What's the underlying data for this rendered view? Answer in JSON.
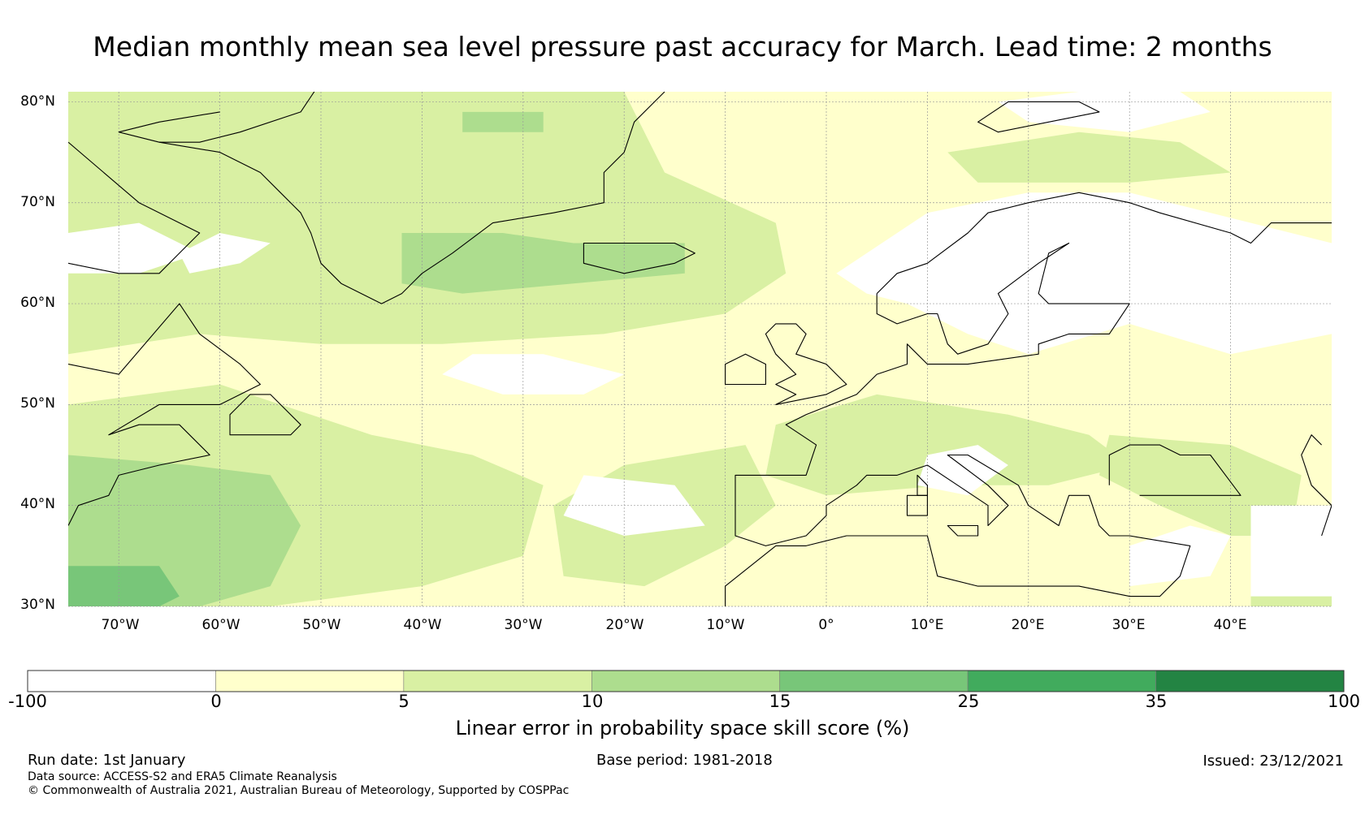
{
  "title": "Median monthly mean sea level pressure past accuracy for March. Lead time: 2 months",
  "map": {
    "lat_labels": [
      "80°N",
      "70°N",
      "60°N",
      "50°N",
      "40°N",
      "30°N"
    ],
    "lon_labels": [
      "70°W",
      "60°W",
      "50°W",
      "40°W",
      "30°W",
      "20°W",
      "10°W",
      "0°",
      "10°E",
      "20°E",
      "30°E",
      "40°E"
    ],
    "lat_values": [
      80,
      70,
      60,
      50,
      40,
      30
    ],
    "lon_values": [
      -70,
      -60,
      -50,
      -40,
      -30,
      -20,
      -10,
      0,
      10,
      20,
      30,
      40
    ],
    "extent": {
      "lon_min": -75,
      "lon_max": 50,
      "lat_min": 30,
      "lat_max": 81
    }
  },
  "colorbar": {
    "ticks": [
      "-100",
      "0",
      "5",
      "10",
      "15",
      "25",
      "35",
      "100"
    ],
    "colors": [
      "#ffffff",
      "#ffffcc",
      "#d9f0a3",
      "#addd8e",
      "#78c679",
      "#41ab5d",
      "#238443"
    ],
    "label": "Linear error in probability space skill score (%)"
  },
  "footer": {
    "run_date": "Run date: 1st January",
    "base_period": "Base period: 1981-2018",
    "issued": "Issued: 23/12/2021",
    "data_source": "Data source: ACCESS-S2 and ERA5 Climate Reanalysis",
    "copyright": "© Commonwealth of Australia 2021, Australian Bureau of Meteorology, Supported by COSPPac"
  }
}
